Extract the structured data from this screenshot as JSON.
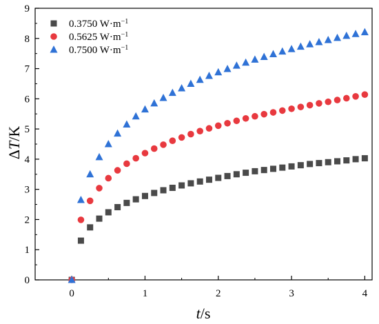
{
  "chart_data": {
    "type": "scatter",
    "xlabel_italic": "t",
    "xlabel_rest": "/s",
    "ylabel_prefix": "Δ",
    "ylabel_italic": "T",
    "ylabel_rest": "/K",
    "xlim": [
      -0.5,
      4.1
    ],
    "ylim": [
      0,
      9
    ],
    "x_ticks": [
      0,
      1,
      2,
      3,
      4
    ],
    "y_ticks": [
      0,
      1,
      2,
      3,
      4,
      5,
      6,
      7,
      8,
      9
    ],
    "grid": false,
    "legend_position": "top-left",
    "series": [
      {
        "name": "0.3750 W·m",
        "name_sup": "−1",
        "marker": "square",
        "color": "#4a4a4a",
        "x": [
          0,
          0.125,
          0.25,
          0.375,
          0.5,
          0.625,
          0.75,
          0.875,
          1.0,
          1.125,
          1.25,
          1.375,
          1.5,
          1.625,
          1.75,
          1.875,
          2.0,
          2.125,
          2.25,
          2.375,
          2.5,
          2.625,
          2.75,
          2.875,
          3.0,
          3.125,
          3.25,
          3.375,
          3.5,
          3.625,
          3.75,
          3.875,
          4.0
        ],
        "y": [
          0,
          1.3,
          1.74,
          2.03,
          2.24,
          2.41,
          2.55,
          2.67,
          2.78,
          2.88,
          2.97,
          3.05,
          3.13,
          3.2,
          3.26,
          3.32,
          3.38,
          3.44,
          3.5,
          3.55,
          3.6,
          3.64,
          3.68,
          3.72,
          3.76,
          3.8,
          3.84,
          3.87,
          3.9,
          3.93,
          3.96,
          4.0,
          4.03
        ]
      },
      {
        "name": "0.5625 W·m",
        "name_sup": "−1",
        "marker": "circle",
        "color": "#e8393f",
        "x": [
          0,
          0.125,
          0.25,
          0.375,
          0.5,
          0.625,
          0.75,
          0.875,
          1.0,
          1.125,
          1.25,
          1.375,
          1.5,
          1.625,
          1.75,
          1.875,
          2.0,
          2.125,
          2.25,
          2.375,
          2.5,
          2.625,
          2.75,
          2.875,
          3.0,
          3.125,
          3.25,
          3.375,
          3.5,
          3.625,
          3.75,
          3.875,
          4.0
        ],
        "y": [
          0,
          1.99,
          2.62,
          3.04,
          3.37,
          3.63,
          3.85,
          4.03,
          4.2,
          4.35,
          4.48,
          4.61,
          4.72,
          4.83,
          4.93,
          5.02,
          5.11,
          5.19,
          5.27,
          5.35,
          5.42,
          5.49,
          5.55,
          5.61,
          5.67,
          5.73,
          5.79,
          5.85,
          5.9,
          5.96,
          6.02,
          6.08,
          6.14
        ]
      },
      {
        "name": "0.7500 W·m",
        "name_sup": "−1",
        "marker": "triangle",
        "color": "#2f72d6",
        "x": [
          0,
          0.125,
          0.25,
          0.375,
          0.5,
          0.625,
          0.75,
          0.875,
          1.0,
          1.125,
          1.25,
          1.375,
          1.5,
          1.625,
          1.75,
          1.875,
          2.0,
          2.125,
          2.25,
          2.375,
          2.5,
          2.625,
          2.75,
          2.875,
          3.0,
          3.125,
          3.25,
          3.375,
          3.5,
          3.625,
          3.75,
          3.875,
          4.0
        ],
        "y": [
          0,
          2.65,
          3.5,
          4.07,
          4.5,
          4.85,
          5.15,
          5.42,
          5.65,
          5.85,
          6.03,
          6.2,
          6.35,
          6.5,
          6.63,
          6.76,
          6.88,
          6.99,
          7.1,
          7.2,
          7.3,
          7.39,
          7.48,
          7.57,
          7.65,
          7.73,
          7.81,
          7.88,
          7.95,
          8.02,
          8.09,
          8.15,
          8.21
        ]
      }
    ]
  }
}
